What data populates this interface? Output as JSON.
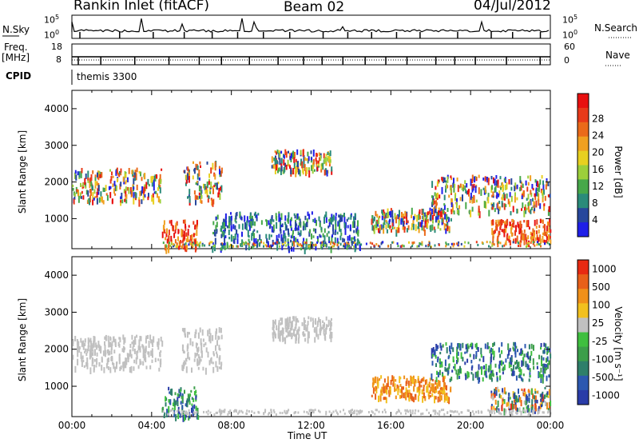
{
  "header": {
    "station": "Rankin Inlet (fitACF)",
    "beam": "Beam 02",
    "date": "04/Jul/2012"
  },
  "left_labels": {
    "nsky": "N.Sky",
    "freq": "Freq.",
    "freq_unit": "[MHz]",
    "cpid": "CPID"
  },
  "right_labels": {
    "nsearch": "N.Search",
    "nave": "Nave"
  },
  "noise_panel": {
    "left_ticks": [
      "10^5",
      "10^0"
    ],
    "right_ticks": [
      "10^5",
      "10^0"
    ]
  },
  "freq_panel": {
    "left_ticks": [
      "18",
      "8"
    ],
    "right_ticks": [
      "60",
      "0"
    ]
  },
  "cpid_text": "themis 3300",
  "chart_data": [
    {
      "type": "heatmap",
      "panel": "power",
      "ylabel": "Slant Range [km]",
      "yticks": [
        "1000",
        "2000",
        "3000",
        "4000"
      ],
      "ylim": [
        180,
        4500
      ],
      "xlim": [
        0,
        24
      ],
      "colorbar": {
        "label": "Power [dB]",
        "ticks": [
          "4",
          "8",
          "12",
          "16",
          "20",
          "24",
          "28"
        ],
        "colors": [
          "#1f1fe8",
          "#27479c",
          "#2a8b7a",
          "#47a84a",
          "#9ccf3b",
          "#e8d020",
          "#f0a020",
          "#ea6a1a",
          "#e83a1a",
          "#e81010"
        ]
      },
      "echo_regions": [
        {
          "t": [
            0.0,
            4.5
          ],
          "r": [
            1500,
            2400
          ],
          "level": "mixed"
        },
        {
          "t": [
            4.5,
            6.3
          ],
          "r": [
            200,
            1000
          ],
          "level": "high"
        },
        {
          "t": [
            5.5,
            7.5
          ],
          "r": [
            1500,
            2600
          ],
          "level": "mixed"
        },
        {
          "t": [
            7.0,
            14.5
          ],
          "r": [
            200,
            1200
          ],
          "level": "low"
        },
        {
          "t": [
            10.0,
            13.0
          ],
          "r": [
            2300,
            2900
          ],
          "level": "mixed"
        },
        {
          "t": [
            15.0,
            19.0
          ],
          "r": [
            700,
            1300
          ],
          "level": "mixed"
        },
        {
          "t": [
            18.0,
            24.0
          ],
          "r": [
            1200,
            2200
          ],
          "level": "mixed"
        },
        {
          "t": [
            21.0,
            24.0
          ],
          "r": [
            400,
            1000
          ],
          "level": "high"
        }
      ]
    },
    {
      "type": "heatmap",
      "panel": "velocity",
      "ylabel": "Slant Range [km]",
      "xlabel": "Time UT",
      "yticks": [
        "1000",
        "2000",
        "3000",
        "4000"
      ],
      "xticks": [
        "00:00",
        "04:00",
        "08:00",
        "12:00",
        "16:00",
        "20:00",
        "00:00"
      ],
      "ylim": [
        180,
        4500
      ],
      "xlim": [
        0,
        24
      ],
      "colorbar": {
        "label": "Velocity [m s⁻¹]",
        "ticks": [
          "1000",
          "500",
          "100",
          "25",
          "-25",
          "-100",
          "-500",
          "-1000"
        ],
        "colors": [
          "#2a3ca8",
          "#2c58b0",
          "#2e7f6a",
          "#3c9e4a",
          "#3fbf3f",
          "#c0c0c0",
          "#f2c01e",
          "#f0901a",
          "#e8601a",
          "#e82a12"
        ]
      },
      "echo_regions": [
        {
          "t": [
            0.0,
            4.5
          ],
          "r": [
            1500,
            2400
          ],
          "level": "ground-scatter"
        },
        {
          "t": [
            4.5,
            6.3
          ],
          "r": [
            200,
            1000
          ],
          "level": "positive"
        },
        {
          "t": [
            5.5,
            7.5
          ],
          "r": [
            1500,
            2600
          ],
          "level": "ground-scatter"
        },
        {
          "t": [
            10.0,
            13.0
          ],
          "r": [
            2300,
            2900
          ],
          "level": "ground-scatter"
        },
        {
          "t": [
            15.0,
            19.0
          ],
          "r": [
            700,
            1300
          ],
          "level": "negative"
        },
        {
          "t": [
            18.0,
            24.0
          ],
          "r": [
            1200,
            2200
          ],
          "level": "positive"
        },
        {
          "t": [
            21.0,
            24.0
          ],
          "r": [
            400,
            1000
          ],
          "level": "mixed"
        }
      ]
    }
  ]
}
